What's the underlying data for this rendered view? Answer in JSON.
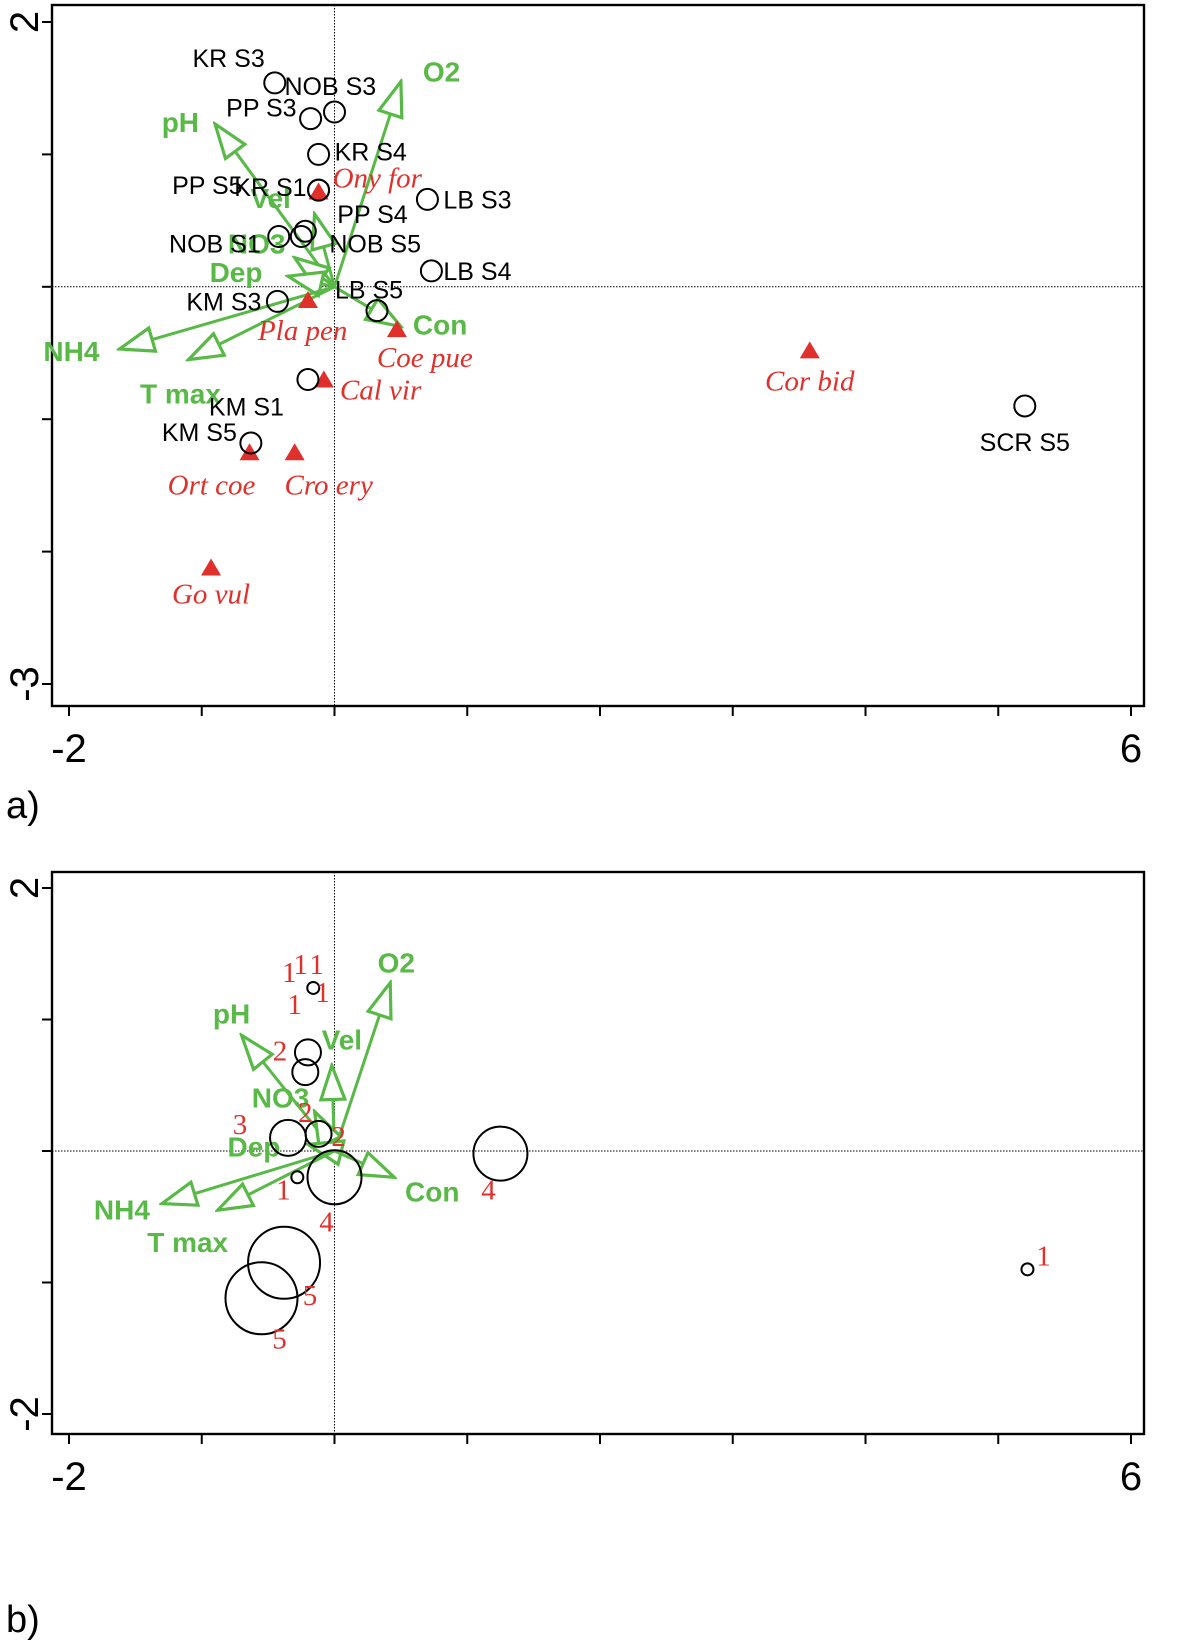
{
  "colors": {
    "env": "#58b947",
    "species": "#e0302b",
    "site": "#000000"
  },
  "chart_data": [
    {
      "panel_label": "a)",
      "type": "scatter",
      "xlim": [
        -2,
        6
      ],
      "ylim": [
        -3,
        2
      ],
      "x_tick_labels": [
        "-2",
        "6"
      ],
      "y_tick_labels": [
        "2",
        "-3"
      ],
      "sites": [
        {
          "label": "KR S3",
          "x": -0.45,
          "y": 1.54
        },
        {
          "label": "NOB S3",
          "x": 0.0,
          "y": 1.32
        },
        {
          "label": "PP S3",
          "x": -0.18,
          "y": 1.27
        },
        {
          "label": "KR S4",
          "x": -0.12,
          "y": 1.0
        },
        {
          "label": "KR S1",
          "x": -0.12,
          "y": 0.73
        },
        {
          "label": "PP S5",
          "x": -0.12,
          "y": 0.73
        },
        {
          "label": "LB S3",
          "x": 0.7,
          "y": 0.66
        },
        {
          "label": "PP S4",
          "x": -0.22,
          "y": 0.42
        },
        {
          "label": "NOB S1",
          "x": -0.42,
          "y": 0.38
        },
        {
          "label": "NOB S5",
          "x": -0.25,
          "y": 0.38
        },
        {
          "label": "LB S4",
          "x": 0.73,
          "y": 0.12
        },
        {
          "label": "KM S3",
          "x": -0.43,
          "y": -0.11
        },
        {
          "label": "LB S5",
          "x": 0.32,
          "y": -0.18
        },
        {
          "label": "KM S1",
          "x": -0.2,
          "y": -0.7
        },
        {
          "label": "KM S5",
          "x": -0.63,
          "y": -1.18
        },
        {
          "label": "SCR S5",
          "x": 5.2,
          "y": -0.9
        }
      ],
      "species": [
        {
          "label": "Ony for",
          "x": -0.12,
          "y": 0.72
        },
        {
          "label": "Pla pen",
          "x": -0.2,
          "y": -0.1
        },
        {
          "label": "Coe pue",
          "x": 0.47,
          "y": -0.32
        },
        {
          "label": "Cal vir",
          "x": -0.08,
          "y": -0.7
        },
        {
          "label": "Cor bid",
          "x": 3.58,
          "y": -0.48
        },
        {
          "label": "Ort coe",
          "x": -0.64,
          "y": -1.25
        },
        {
          "label": "Cro ery",
          "x": -0.3,
          "y": -1.25
        },
        {
          "label": "Go vul",
          "x": -0.93,
          "y": -2.12
        }
      ],
      "env_variables": [
        {
          "label": "O2",
          "x": 0.5,
          "y": 1.55
        },
        {
          "label": "pH",
          "x": -0.9,
          "y": 1.23
        },
        {
          "label": "Vel",
          "x": -0.15,
          "y": 0.55
        },
        {
          "label": "NO3",
          "x": -0.3,
          "y": 0.22
        },
        {
          "label": "Dep",
          "x": -0.35,
          "y": 0.08
        },
        {
          "label": "NH4",
          "x": -1.62,
          "y": -0.47
        },
        {
          "label": "T max",
          "x": -1.1,
          "y": -0.55
        },
        {
          "label": "Con",
          "x": 0.5,
          "y": -0.3
        }
      ]
    },
    {
      "panel_label": "b)",
      "type": "scatter",
      "xlim": [
        -2,
        6
      ],
      "ylim": [
        -2,
        2
      ],
      "x_tick_labels": [
        "-2",
        "6"
      ],
      "y_tick_labels": [
        "2",
        "-2"
      ],
      "sites": [
        {
          "group": "1",
          "x": -0.16,
          "y": 1.24,
          "size": 1
        },
        {
          "group": "1",
          "x": -0.18,
          "y": 1.24,
          "size": 1
        },
        {
          "group": "1",
          "x": -0.15,
          "y": 1.24,
          "size": 1
        },
        {
          "group": "1",
          "x": -0.18,
          "y": 1.24,
          "size": 1
        },
        {
          "group": "1",
          "x": -0.15,
          "y": 1.24,
          "size": 1
        },
        {
          "group": "2",
          "x": -0.2,
          "y": 0.75,
          "size": 2
        },
        {
          "group": "2",
          "x": -0.22,
          "y": 0.6,
          "size": 2
        },
        {
          "group": "2",
          "x": -0.12,
          "y": 0.13,
          "size": 2
        },
        {
          "group": "3",
          "x": -0.35,
          "y": 0.1,
          "size": 3
        },
        {
          "group": "1",
          "x": -0.28,
          "y": -0.2,
          "size": 1
        },
        {
          "group": "4",
          "x": 0.0,
          "y": -0.2,
          "size": 4
        },
        {
          "group": "4",
          "x": 1.25,
          "y": -0.02,
          "size": 4
        },
        {
          "group": "5",
          "x": -0.38,
          "y": -0.85,
          "size": 5
        },
        {
          "group": "5",
          "x": -0.55,
          "y": -1.12,
          "size": 5
        },
        {
          "group": "1",
          "x": 5.22,
          "y": -0.9,
          "size": 1
        }
      ],
      "env_variables": [
        {
          "label": "O2",
          "x": 0.42,
          "y": 1.28
        },
        {
          "label": "pH",
          "x": -0.7,
          "y": 0.88
        },
        {
          "label": "Vel",
          "x": -0.02,
          "y": 0.65
        },
        {
          "label": "NO3",
          "x": -0.15,
          "y": 0.3
        },
        {
          "label": "Dep",
          "x": -0.2,
          "y": 0.05
        },
        {
          "label": "NH4",
          "x": -1.3,
          "y": -0.4
        },
        {
          "label": "T max",
          "x": -0.88,
          "y": -0.45
        },
        {
          "label": "Con",
          "x": 0.45,
          "y": -0.2
        }
      ]
    }
  ]
}
